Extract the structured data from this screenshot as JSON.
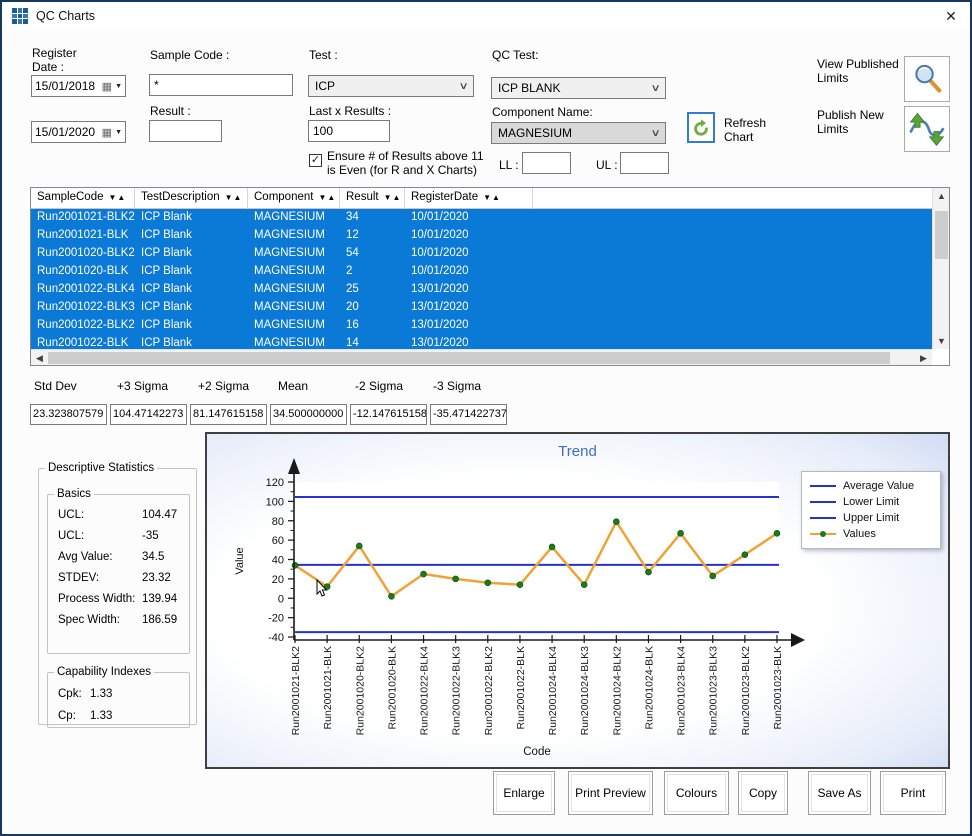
{
  "window": {
    "title": "QC Charts",
    "close_glyph": "✕"
  },
  "filters": {
    "register_date_label": "Register\nDate :",
    "date_from": "15/01/2018",
    "date_to": "15/01/2020",
    "sample_code_label": "Sample Code :",
    "sample_code_value": "*",
    "result_label": "Result :",
    "result_value": "",
    "test_label": "Test :",
    "test_value": "ICP",
    "last_x_label": "Last x Results :",
    "last_x_value": "100",
    "ensure_label": "Ensure # of Results above 11\nis Even (for R and X Charts)",
    "ensure_checked": "✓",
    "qc_test_label": "QC Test:",
    "qc_test_value": "ICP BLANK",
    "component_label": "Component Name:",
    "component_value": "MAGNESIUM",
    "ll_label": "LL :",
    "ll_value": "",
    "ul_label": "UL :",
    "ul_value": "",
    "refresh_label": "Refresh\nChart",
    "view_published_label": "View Published\nLimits",
    "publish_new_label": "Publish New\nLimits"
  },
  "grid": {
    "sort_glyph": "▼▲",
    "columns": [
      "SampleCode",
      "TestDescription",
      "Component",
      "Result",
      "RegisterDate"
    ],
    "rows": [
      [
        "Run2001021-BLK2",
        "ICP Blank",
        "MAGNESIUM",
        "34",
        "10/01/2020"
      ],
      [
        "Run2001021-BLK",
        "ICP Blank",
        "MAGNESIUM",
        "12",
        "10/01/2020"
      ],
      [
        "Run2001020-BLK2",
        "ICP Blank",
        "MAGNESIUM",
        "54",
        "10/01/2020"
      ],
      [
        "Run2001020-BLK",
        "ICP Blank",
        "MAGNESIUM",
        "2",
        "10/01/2020"
      ],
      [
        "Run2001022-BLK4",
        "ICP Blank",
        "MAGNESIUM",
        "25",
        "13/01/2020"
      ],
      [
        "Run2001022-BLK3",
        "ICP Blank",
        "MAGNESIUM",
        "20",
        "13/01/2020"
      ],
      [
        "Run2001022-BLK2",
        "ICP Blank",
        "MAGNESIUM",
        "16",
        "13/01/2020"
      ],
      [
        "Run2001022-BLK",
        "ICP Blank",
        "MAGNESIUM",
        "14",
        "13/01/2020"
      ]
    ],
    "selection_color": "#0b79d6"
  },
  "stats_row": {
    "labels": [
      "Std Dev",
      "+3 Sigma",
      "+2 Sigma",
      "Mean",
      "-2 Sigma",
      "-3 Sigma"
    ],
    "values": [
      "23.323807579",
      "104.47142273",
      "81.147615158",
      "34.500000000",
      "-12.147615158",
      "-35.471422737"
    ]
  },
  "desc_stats": {
    "title": "Descriptive Statistics",
    "basics_title": "Basics",
    "items": [
      {
        "label": "UCL:",
        "value": "104.47"
      },
      {
        "label": "UCL:",
        "value": "-35"
      },
      {
        "label": "Avg Value:",
        "value": "34.5"
      },
      {
        "label": "STDEV:",
        "value": "23.32"
      },
      {
        "label": "Process Width:",
        "value": "139.94"
      },
      {
        "label": "Spec Width:",
        "value": "186.59"
      }
    ],
    "capability_title": "Capability Indexes",
    "cap_items": [
      {
        "label": "Cpk:",
        "value": "1.33"
      },
      {
        "label": "Cp:",
        "value": "1.33"
      }
    ]
  },
  "chart_data": {
    "type": "line",
    "title": "Trend",
    "xlabel": "Code",
    "ylabel": "Value",
    "ylim": [
      -40,
      120
    ],
    "ytick_step": 20,
    "legend_position": "right",
    "title_color": "#3f6ec6",
    "categories": [
      "Run2001021-BLK2",
      "Run2001021-BLK",
      "Run2001020-BLK2",
      "Run2001020-BLK",
      "Run2001022-BLK4",
      "Run2001022-BLK3",
      "Run2001022-BLK2",
      "Run2001022-BLK",
      "Run2001024-BLK4",
      "Run2001024-BLK3",
      "Run2001024-BLK2",
      "Run2001024-BLK",
      "Run2001023-BLK4",
      "Run2001023-BLK3",
      "Run2001023-BLK2",
      "Run2001023-BLK"
    ],
    "series": [
      {
        "name": "Average Value",
        "kind": "hline",
        "value": 34.5,
        "color": "#2533cb"
      },
      {
        "name": "Lower Limit",
        "kind": "hline",
        "value": -35,
        "color": "#2533cb"
      },
      {
        "name": "Upper Limit",
        "kind": "hline",
        "value": 104.47,
        "color": "#2533cb"
      },
      {
        "name": "Values",
        "kind": "line",
        "color": "#f0a235",
        "marker_color": "#1b7a1b",
        "values": [
          34,
          12,
          54,
          2,
          25,
          20,
          16,
          14,
          53,
          14,
          79,
          27,
          67,
          23,
          45,
          67
        ]
      }
    ]
  },
  "actions": [
    "Enlarge",
    "Print Preview",
    "Colours",
    "Copy",
    "Save As",
    "Print"
  ]
}
